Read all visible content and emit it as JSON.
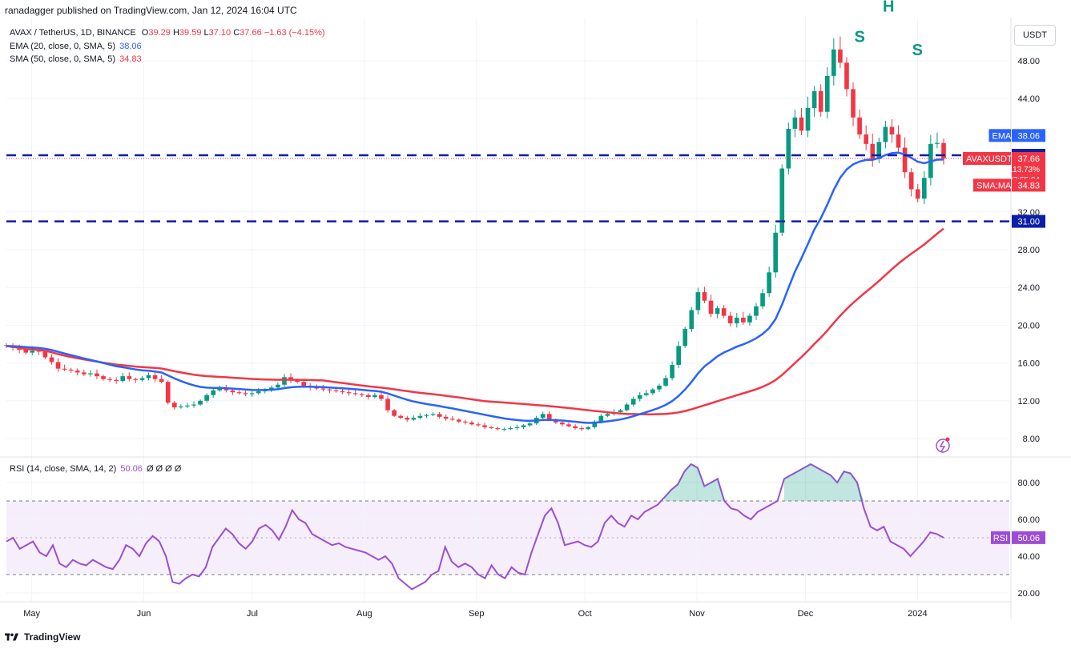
{
  "header": {
    "publisher_line": "ranadagger published on TradingView.com, Jan 12, 2024 16:04 UTC"
  },
  "legend": {
    "symbol": "AVAX / TetherUS, 1D, BINANCE",
    "o_label": "O",
    "o": "39.29",
    "h_label": "H",
    "h": "39.59",
    "l_label": "L",
    "l": "37.10",
    "c_label": "C",
    "c": "37.66",
    "change": "−1.63 (−4.15%)",
    "ema_label": "EMA (20, close, 0, SMA, 5)",
    "ema_value": "38.06",
    "sma_label": "SMA (50, close, 0, SMA, 5)",
    "sma_value": "34.83",
    "rsi_label": "RSI (14, close, SMA, 14, 2)",
    "rsi_value": "50.06",
    "rsi_extra": "Ø Ø Ø Ø"
  },
  "currency_button": "USDT",
  "footer": {
    "brand": "TradingView"
  },
  "colors": {
    "up": "#089981",
    "down": "#f23645",
    "ema": "#2962ff",
    "sma": "#f23645",
    "rsi": "#9c4dd3",
    "level": "#0d1ea8"
  },
  "chart_data": [
    {
      "type": "candlestick",
      "title": "AVAX / TetherUS, 1D, BINANCE",
      "ylim": [
        6.5,
        52
      ],
      "yticks": [
        "8.00",
        "12.00",
        "16.00",
        "20.00",
        "24.00",
        "28.00",
        "32.00",
        "44.00",
        "48.00"
      ],
      "xticks": [
        {
          "label": "May",
          "date": "2023-05-01"
        },
        {
          "label": "Jun",
          "date": "2023-06-01"
        },
        {
          "label": "Jul",
          "date": "2023-07-01"
        },
        {
          "label": "Aug",
          "date": "2023-08-01"
        },
        {
          "label": "Sep",
          "date": "2023-09-01"
        },
        {
          "label": "Oct",
          "date": "2023-10-01"
        },
        {
          "label": "Nov",
          "date": "2023-11-01"
        },
        {
          "label": "Dec",
          "date": "2023-12-01"
        },
        {
          "label": "2024",
          "date": "2024-01-01"
        }
      ],
      "x_range": [
        "2023-04-24",
        "2024-01-12"
      ],
      "close_series": [
        17.8,
        17.6,
        17.4,
        17.1,
        17.3,
        17.2,
        16.6,
        16.1,
        15.4,
        15.3,
        15.2,
        15.0,
        14.8,
        14.9,
        14.6,
        14.3,
        14.2,
        14.1,
        14.6,
        14.3,
        14.2,
        14.4,
        14.7,
        14.3,
        14.0,
        11.8,
        11.3,
        11.4,
        11.5,
        11.6,
        12.0,
        12.6,
        13.1,
        13.3,
        13.1,
        12.9,
        12.8,
        12.7,
        12.8,
        13.0,
        13.2,
        13.4,
        13.7,
        14.5,
        14.2,
        14.0,
        13.6,
        13.4,
        13.3,
        13.2,
        13.1,
        13.0,
        12.9,
        12.8,
        12.7,
        12.6,
        12.4,
        12.6,
        12.2,
        11.0,
        10.4,
        10.2,
        10.0,
        10.2,
        10.4,
        10.5,
        10.6,
        10.3,
        10.1,
        10.0,
        9.8,
        9.7,
        9.5,
        9.4,
        9.2,
        9.1,
        9.0,
        9.0,
        9.1,
        9.2,
        9.4,
        9.6,
        10.2,
        10.6,
        10.0,
        9.7,
        9.5,
        9.3,
        9.1,
        9.0,
        9.2,
        9.8,
        10.4,
        10.6,
        10.8,
        11.0,
        11.6,
        12.2,
        12.6,
        12.8,
        13.2,
        13.6,
        14.4,
        15.8,
        17.8,
        19.6,
        21.6,
        23.5,
        22.6,
        21.2,
        21.8,
        21.0,
        20.2,
        20.8,
        20.3,
        21.0,
        22.0,
        23.4,
        25.6,
        29.8,
        36.6,
        40.8,
        42.0,
        40.6,
        43.0,
        44.8,
        42.6,
        46.4,
        49.2,
        47.8,
        45.0,
        42.0,
        40.2,
        39.2,
        37.6,
        39.4,
        41.0,
        40.2,
        38.8,
        36.2,
        34.4,
        33.4,
        35.6,
        39.2,
        39.3,
        37.66
      ],
      "candles_approx": "daily OHLC, ~263 candles",
      "overlays": [
        {
          "name": "EMA",
          "period": 20,
          "last": 38.06
        },
        {
          "name": "SMA:MA",
          "period": 50,
          "last": 34.83
        }
      ],
      "price_labels": [
        {
          "label": "EMA",
          "value": "38.06"
        },
        {
          "label": "",
          "value": "38.00"
        },
        {
          "label": "AVAXUSDT",
          "value": "37.66",
          "extra": [
            "+113.73%",
            "07:55:04"
          ]
        },
        {
          "label": "SMA:MA",
          "value": "34.83"
        },
        {
          "label": "",
          "value": "31.00"
        }
      ],
      "horizontal_levels": [
        38.0,
        31.0
      ],
      "annotations": [
        {
          "text": "S",
          "date": "2023-12-16",
          "price": 50.0
        },
        {
          "text": "H",
          "date": "2023-12-24",
          "price": 53.2
        },
        {
          "text": "S",
          "date": "2024-01-01",
          "price": 48.6
        }
      ]
    },
    {
      "type": "line",
      "title": "RSI (14, close, SMA, 14, 2)",
      "ylim": [
        14,
        95
      ],
      "yticks": [
        "20.00",
        "40.00",
        "60.00",
        "80.00"
      ],
      "band": [
        30,
        70
      ],
      "midline": 50,
      "last": 50.06,
      "values": [
        48,
        50,
        44,
        46,
        48,
        42,
        40,
        46,
        36,
        34,
        38,
        36,
        35,
        38,
        36,
        34,
        33,
        38,
        46,
        44,
        40,
        47,
        51,
        48,
        40,
        26,
        25,
        28,
        30,
        29,
        34,
        45,
        50,
        55,
        52,
        47,
        44,
        48,
        55,
        57,
        54,
        49,
        56,
        65,
        60,
        58,
        52,
        50,
        48,
        46,
        47,
        45,
        44,
        43,
        42,
        40,
        38,
        40,
        36,
        28,
        25,
        22,
        24,
        26,
        30,
        32,
        45,
        37,
        34,
        36,
        34,
        30,
        28,
        35,
        30,
        28,
        34,
        31,
        30,
        42,
        52,
        62,
        66,
        58,
        46,
        47,
        48,
        46,
        45,
        48,
        58,
        62,
        58,
        56,
        62,
        60,
        64,
        66,
        68,
        72,
        76,
        79,
        86,
        90,
        88,
        78,
        80,
        82,
        70,
        66,
        65,
        62,
        60,
        64,
        66,
        68,
        70,
        82,
        84,
        86,
        88,
        90,
        88,
        86,
        84,
        80,
        86,
        85,
        80,
        66,
        56,
        54,
        56,
        48,
        46,
        44,
        40,
        44,
        48,
        53,
        52,
        50.06
      ]
    }
  ]
}
